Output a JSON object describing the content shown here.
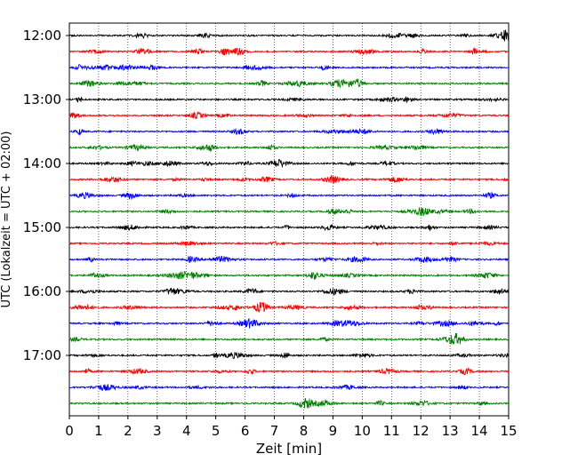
{
  "chart_data": {
    "type": "line",
    "title": "",
    "xlabel": "Zeit  [min]",
    "ylabel": "UTC (Lokalzeit = UTC + 02:00)",
    "xlim": [
      0,
      15
    ],
    "x_ticks": [
      "0",
      "1",
      "2",
      "3",
      "4",
      "5",
      "6",
      "7",
      "8",
      "9",
      "10",
      "11",
      "12",
      "13",
      "14",
      "15"
    ],
    "y_ticks": [
      {
        "hour": 12,
        "label": "12:00"
      },
      {
        "hour": 13,
        "label": "13:00"
      },
      {
        "hour": 14,
        "label": "14:00"
      },
      {
        "hour": 15,
        "label": "15:00"
      },
      {
        "hour": 16,
        "label": "16:00"
      },
      {
        "hour": 17,
        "label": "17:00"
      }
    ],
    "trace_start": "12:00",
    "trace_interval_min": 15,
    "trace_count": 24,
    "trace_colors": [
      "#000000",
      "#ff0000",
      "#0000ff",
      "#008000"
    ],
    "grid": "vertical dotted",
    "legend": "none"
  }
}
